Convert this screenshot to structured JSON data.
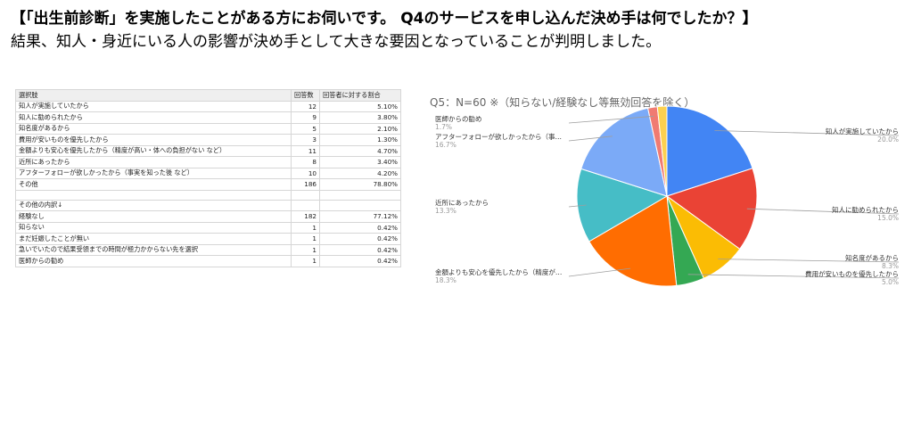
{
  "headline": "【「出生前診断」を実施したことがある方にお伺いです。 Q4のサービスを申し込んだ決め手は何でしたか？】",
  "subline": "結果、知人・身近にいる人の影響が決め手として大きな要因となっていることが判明しました。",
  "table": {
    "headers": [
      "選択肢",
      "回答数",
      "回答者に対する割合"
    ],
    "rows": [
      [
        "知人が実施していたから",
        "12",
        "5.10%"
      ],
      [
        "知人に勧められたから",
        "9",
        "3.80%"
      ],
      [
        "知名度があるから",
        "5",
        "2.10%"
      ],
      [
        "費用が安いものを優先したから",
        "3",
        "1.30%"
      ],
      [
        "金額よりも安心を優先したから（精度が高い・体への負担がない など）",
        "11",
        "4.70%"
      ],
      [
        "近所にあったから",
        "8",
        "3.40%"
      ],
      [
        "アフターフォローが欲しかったから（事実を知った後 など）",
        "10",
        "4.20%"
      ],
      [
        "その他",
        "186",
        "78.80%"
      ]
    ],
    "other_rows": [
      [
        "その他の内訳↓",
        "",
        ""
      ],
      [
        "経験なし",
        "182",
        "77.12%"
      ],
      [
        "知らない",
        "1",
        "0.42%"
      ],
      [
        "まだ妊娠したことが無い",
        "1",
        "0.42%"
      ],
      [
        "急いでいたので結果受領までの時間が極力かからない先を選択",
        "1",
        "0.42%"
      ],
      [
        "医師からの勧め",
        "1",
        "0.42%"
      ]
    ]
  },
  "chart_data": {
    "type": "pie",
    "title": "Q5：N=60 ※（知らない/経験なし等無効回答を除く）",
    "slices": [
      {
        "label": "知人が実施していたから",
        "value": 20.0,
        "pct": "20.0%",
        "color": "#4285f4"
      },
      {
        "label": "知人に勧められたから",
        "value": 15.0,
        "pct": "15.0%",
        "color": "#ea4335"
      },
      {
        "label": "知名度があるから",
        "value": 8.3,
        "pct": "8.3%",
        "color": "#fbbc04"
      },
      {
        "label": "費用が安いものを優先したから",
        "value": 5.0,
        "pct": "5.0%",
        "color": "#34a853"
      },
      {
        "label": "金額よりも安心を優先したから（精度が…",
        "value": 18.3,
        "pct": "18.3%",
        "color": "#ff6d01"
      },
      {
        "label": "近所にあったから",
        "value": 13.3,
        "pct": "13.3%",
        "color": "#46bdc6"
      },
      {
        "label": "アフターフォローが欲しかったから（事…",
        "value": 16.7,
        "pct": "16.7%",
        "color": "#7baaf7"
      },
      {
        "label": "医師からの勧め",
        "value": 1.7,
        "pct": "1.7%",
        "color": "#f07b72"
      },
      {
        "label": "",
        "value": 1.7,
        "pct": "",
        "color": "#fcd04f"
      }
    ],
    "legend": "callouts"
  }
}
